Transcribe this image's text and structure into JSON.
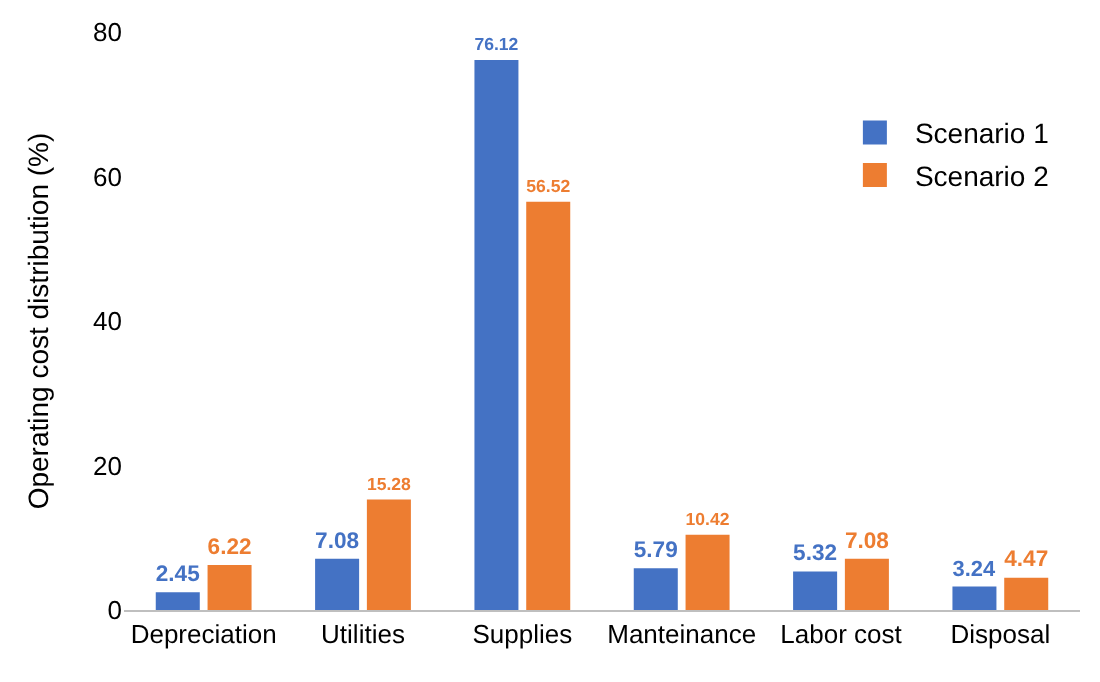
{
  "chart_data": {
    "type": "bar",
    "ylabel": "Operating cost distribution (%)",
    "categories": [
      "Depreciation",
      "Utilities",
      "Supplies",
      "Manteinance",
      "Labor cost",
      "Disposal"
    ],
    "series": [
      {
        "name": "Scenario 1",
        "color": "#4472c4",
        "values": [
          2.45,
          7.08,
          76.12,
          5.79,
          5.32,
          3.24
        ]
      },
      {
        "name": "Scenario 2",
        "color": "#ed7d31",
        "values": [
          6.22,
          15.28,
          56.52,
          10.42,
          7.08,
          4.47
        ]
      }
    ],
    "ylim": [
      0,
      80
    ],
    "yticks": [
      0,
      20,
      40,
      60,
      80
    ],
    "grid": false,
    "legend": "top right",
    "data_labels": true
  }
}
